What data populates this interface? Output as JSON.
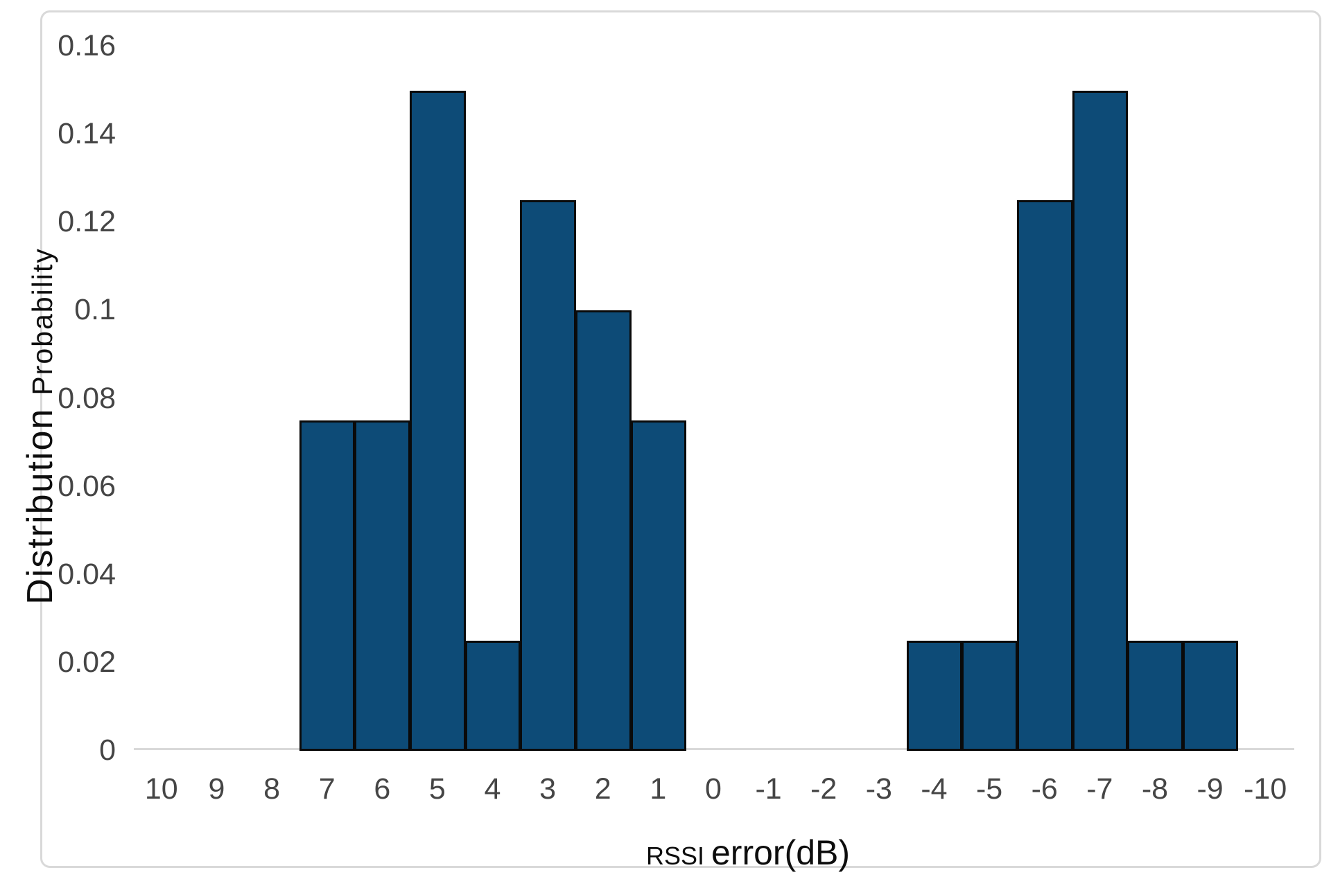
{
  "figure": {
    "background": "#ffffff",
    "frame_color": "#d9d9d9"
  },
  "chart_data": {
    "type": "bar",
    "title": "",
    "xlabel": "RSSI error(dB)",
    "ylabel": "Distribution Probability",
    "xlabel_parts": {
      "small": "RSSI",
      "large": "error(dB)"
    },
    "ylabel_parts": {
      "large": "Distribution",
      "small": "Probability"
    },
    "categories": [
      "10",
      "9",
      "8",
      "7",
      "6",
      "5",
      "4",
      "3",
      "2",
      "1",
      "0",
      "-1",
      "-2",
      "-3",
      "-4",
      "-5",
      "-6",
      "-7",
      "-8",
      "-9",
      "-10"
    ],
    "values": [
      0,
      0,
      0,
      0.075,
      0.075,
      0.15,
      0.025,
      0.125,
      0.1,
      0.075,
      0,
      0,
      0,
      0,
      0.025,
      0.025,
      0.125,
      0.15,
      0.025,
      0.025,
      0
    ],
    "ylim": [
      0,
      0.16
    ],
    "ytick_labels": [
      "0",
      "0.02",
      "0.04",
      "0.06",
      "0.08",
      "0.1",
      "0.12",
      "0.14",
      "0.16"
    ],
    "grid": false,
    "legend": null,
    "gap_width_percent": 0,
    "colors": {
      "bar_fill": "#0d4b77",
      "bar_border": "#0a0a0a",
      "axis_line": "#d9d9d9",
      "tick_label": "#454545",
      "title_text": "#0d0d0d"
    }
  }
}
